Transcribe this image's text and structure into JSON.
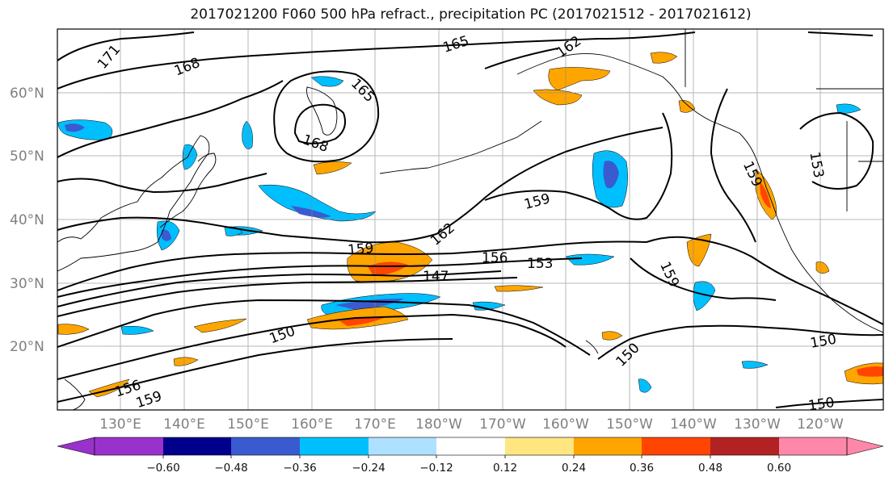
{
  "title": "2017021200 F060 500 hPa refract., precipitation PC (2017021512 - 2017021612)",
  "lat_labels": [
    "60°N",
    "50°N",
    "40°N",
    "30°N",
    "20°N"
  ],
  "lon_labels": [
    "130°E",
    "140°E",
    "150°E",
    "160°E",
    "170°E",
    "180°W",
    "170°W",
    "160°W",
    "150°W",
    "140°W",
    "130°W",
    "120°W"
  ],
  "colorbar": {
    "ticks": [
      "−0.60",
      "−0.48",
      "−0.36",
      "−0.24",
      "−0.12",
      "0.12",
      "0.24",
      "0.36",
      "0.48",
      "0.60"
    ],
    "colors": [
      "#9932cc",
      "#00008b",
      "#3a5bcf",
      "#00bfff",
      "#aee0ff",
      "#ffffff",
      "#ffe680",
      "#ffa500",
      "#ff4500",
      "#b22222",
      "#ff88aa"
    ]
  },
  "contour_labels": [
    "171",
    "168",
    "165",
    "162",
    "165",
    "168",
    "159",
    "162",
    "159",
    "156",
    "153",
    "147",
    "159",
    "153",
    "159",
    "150",
    "150",
    "150",
    "150",
    "156",
    "159"
  ],
  "colors": {
    "contour": "#000000",
    "grid": "#888888",
    "coast": "#000000"
  }
}
